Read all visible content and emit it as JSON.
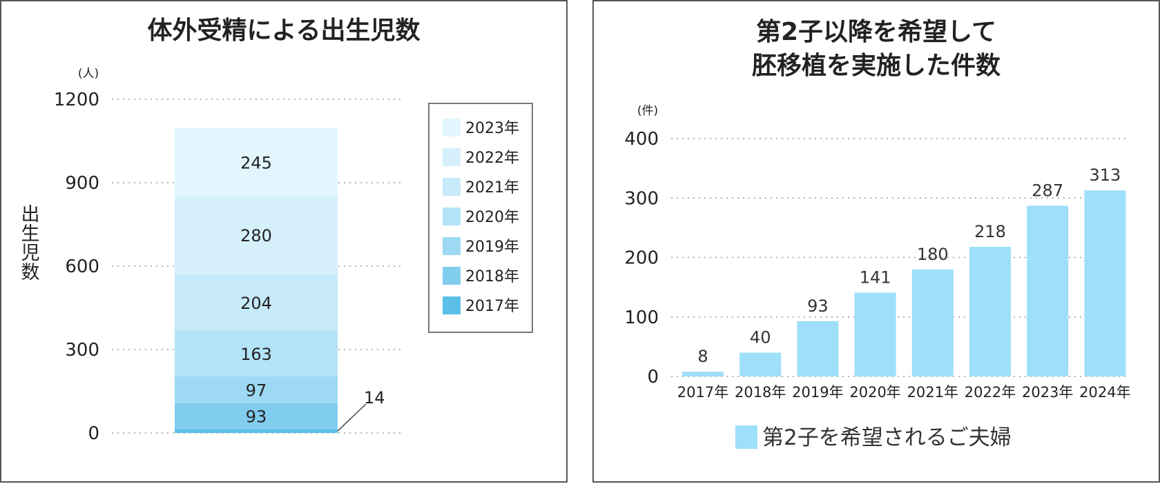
{
  "chart_data": [
    {
      "type": "bar",
      "stacked": true,
      "title": "体外受精による出生児数",
      "ylabel": "出生児数",
      "unit": "(人)",
      "ylim": [
        0,
        1200
      ],
      "yticks": [
        0,
        300,
        600,
        900,
        1200
      ],
      "grid": true,
      "legend_position": "right",
      "series": [
        {
          "name": "2017年",
          "value": 14,
          "color": "#5bbfe8"
        },
        {
          "name": "2018年",
          "value": 93,
          "color": "#80cdee"
        },
        {
          "name": "2019年",
          "value": 97,
          "color": "#9dd9f3"
        },
        {
          "name": "2020年",
          "value": 163,
          "color": "#b3e3f7"
        },
        {
          "name": "2021年",
          "value": 204,
          "color": "#c6eaf9"
        },
        {
          "name": "2022年",
          "value": 280,
          "color": "#d5f0fb"
        },
        {
          "name": "2023年",
          "value": 245,
          "color": "#e3f6fd"
        }
      ],
      "callout_label": "14"
    },
    {
      "type": "bar",
      "title": [
        "第2子以降を希望して",
        "胚移植を実施した件数"
      ],
      "unit": "(件)",
      "ylim": [
        0,
        400
      ],
      "yticks": [
        0,
        100,
        200,
        300,
        400
      ],
      "grid": true,
      "legend_position": "bottom",
      "categories": [
        "2017年",
        "2018年",
        "2019年",
        "2020年",
        "2021年",
        "2022年",
        "2023年",
        "2024年"
      ],
      "series": [
        {
          "name": "第2子を希望されるご夫婦",
          "values": [
            8,
            40,
            93,
            141,
            180,
            218,
            287,
            313
          ],
          "color": "#9edff9"
        }
      ]
    }
  ]
}
